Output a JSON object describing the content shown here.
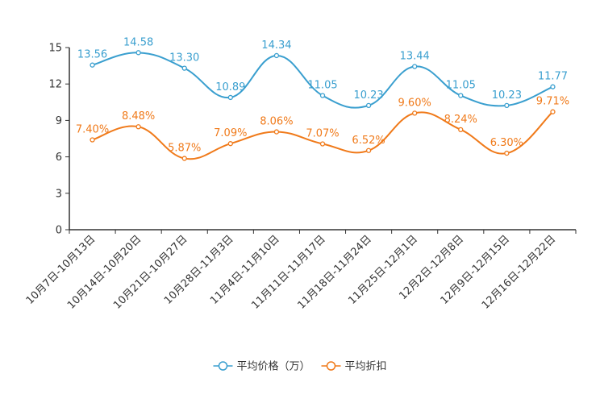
{
  "chart_data": {
    "type": "line",
    "title": "",
    "xlabel": "",
    "ylabel": "",
    "ylim": [
      0,
      15
    ],
    "yticks": [
      0,
      3,
      6,
      9,
      12,
      15
    ],
    "smooth": true,
    "grid": false,
    "legend_position": "bottom-center",
    "categories": [
      "10月7日-10月13日",
      "10月14日-10月20日",
      "10月21日-10月27日",
      "10月28日-11月3日",
      "11月4日-11月10日",
      "11月11日-11月17日",
      "11月18日-11月24日",
      "11月25日-12月1日",
      "12月2日-12月8日",
      "12月9日-12月15日",
      "12月16日-12月22日"
    ],
    "series": [
      {
        "name": "平均价格（万）",
        "color": "#3a9fcf",
        "values": [
          13.56,
          14.58,
          13.3,
          10.89,
          14.34,
          11.05,
          10.23,
          13.44,
          11.05,
          10.23,
          11.77
        ],
        "labels": [
          "13.56",
          "14.58",
          "13.30",
          "10.89",
          "14.34",
          "11.05",
          "10.23",
          "13.44",
          "11.05",
          "10.23",
          "11.77"
        ]
      },
      {
        "name": "平均折扣",
        "color": "#f07a1a",
        "values": [
          7.4,
          8.48,
          5.87,
          7.09,
          8.06,
          7.07,
          6.52,
          9.6,
          8.24,
          6.3,
          9.71
        ],
        "labels": [
          "7.40%",
          "8.48%",
          "5.87%",
          "7.09%",
          "8.06%",
          "7.07%",
          "6.52%",
          "9.60%",
          "8.24%",
          "6.30%",
          "9.71%"
        ]
      }
    ]
  }
}
